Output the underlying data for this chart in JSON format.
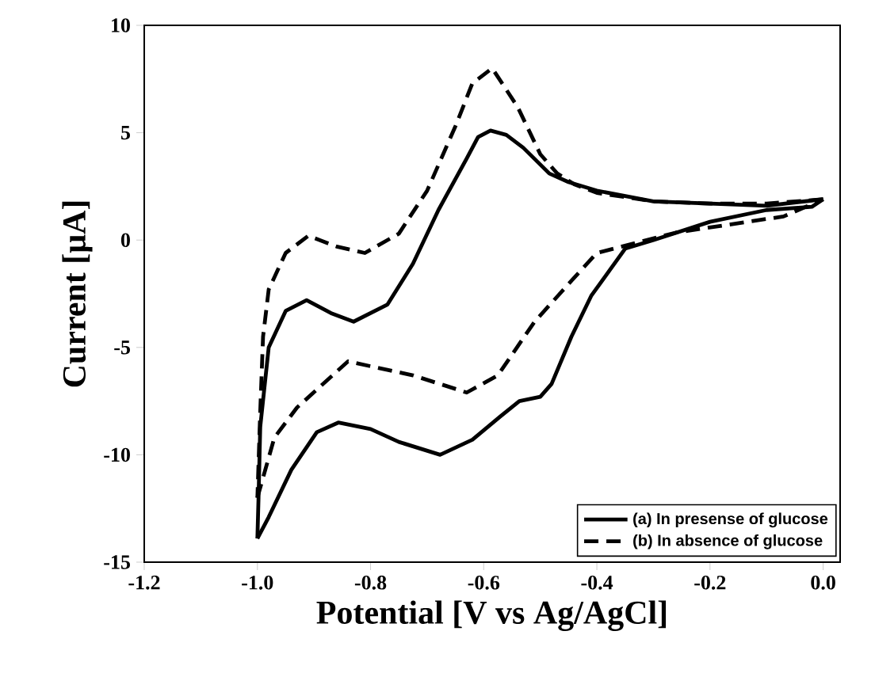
{
  "chart_data": {
    "type": "line",
    "xlabel": "Potential [V vs Ag/AgCl]",
    "ylabel": "Current [μA]",
    "xlim": [
      -1.2,
      0.03
    ],
    "ylim": [
      -15,
      10
    ],
    "xticks": [
      -1.2,
      {
        "value": -1.0,
        "label": "-1.0"
      },
      -0.8,
      -0.6,
      -0.4,
      -0.2,
      {
        "value": 0.0,
        "label": "0.0"
      }
    ],
    "yticks": [
      -15,
      -10,
      -5,
      0,
      5,
      10
    ],
    "grid": false,
    "legend": "bottom right",
    "marker": "none",
    "series": [
      {
        "name": "(a) In presense of glucose",
        "color": "#000000",
        "line_style": "solid",
        "x": [
          0.0,
          -0.1,
          -0.2,
          -0.3,
          -0.4,
          -0.45,
          -0.484,
          -0.53,
          -0.56,
          -0.588,
          -0.61,
          -0.63,
          -0.68,
          -0.725,
          -0.77,
          -0.83,
          -0.87,
          -0.913,
          -0.95,
          -0.98,
          -0.995,
          -0.998,
          -1.0
        ],
        "values": [
          1.9,
          1.6,
          1.7,
          1.8,
          2.3,
          2.7,
          3.1,
          4.3,
          4.9,
          5.1,
          4.8,
          3.8,
          1.4,
          -1.1,
          -3.0,
          -3.8,
          -3.4,
          -2.8,
          -3.3,
          -5.0,
          -8.7,
          -12.0,
          -13.9
        ]
      },
      {
        "color": "#000000",
        "line_style": "solid",
        "x": [
          -1.0,
          -0.98,
          -0.94,
          -0.895,
          -0.857,
          -0.8,
          -0.75,
          -0.677,
          -0.62,
          -0.57,
          -0.537,
          -0.5,
          -0.48,
          -0.445,
          -0.41,
          -0.35,
          -0.3,
          -0.2,
          -0.1,
          -0.02,
          0.0
        ],
        "values": [
          -13.9,
          -12.9,
          -10.7,
          -8.95,
          -8.5,
          -8.8,
          -9.4,
          -10.0,
          -9.3,
          -8.2,
          -7.5,
          -7.3,
          -6.7,
          -4.5,
          -2.6,
          -0.4,
          0.0,
          0.85,
          1.4,
          1.55,
          1.9
        ]
      },
      {
        "name": "(b) In absence of glucose",
        "color": "#000000",
        "line_style": "dashed",
        "x": [
          0.0,
          -0.1,
          -0.2,
          -0.3,
          -0.4,
          -0.44,
          -0.47,
          -0.5,
          -0.54,
          -0.585,
          -0.62,
          -0.65,
          -0.7,
          -0.75,
          -0.81,
          -0.86,
          -0.91,
          -0.95,
          -0.98,
          -0.99,
          -0.995,
          -1.0
        ],
        "values": [
          1.9,
          1.7,
          1.7,
          1.8,
          2.2,
          2.6,
          3.1,
          4.0,
          6.2,
          8.0,
          7.3,
          5.3,
          2.3,
          0.3,
          -0.6,
          -0.3,
          0.2,
          -0.6,
          -2.3,
          -4.5,
          -8.0,
          -12.0
        ]
      },
      {
        "color": "#000000",
        "line_style": "dashed",
        "x": [
          -1.0,
          -0.97,
          -0.93,
          -0.84,
          -0.725,
          -0.63,
          -0.575,
          -0.51,
          -0.445,
          -0.4,
          -0.26,
          -0.07,
          0.0
        ],
        "values": [
          -12.0,
          -9.2,
          -7.8,
          -5.65,
          -6.3,
          -7.1,
          -6.3,
          -3.8,
          -1.9,
          -0.6,
          0.35,
          1.1,
          1.9
        ]
      }
    ]
  }
}
